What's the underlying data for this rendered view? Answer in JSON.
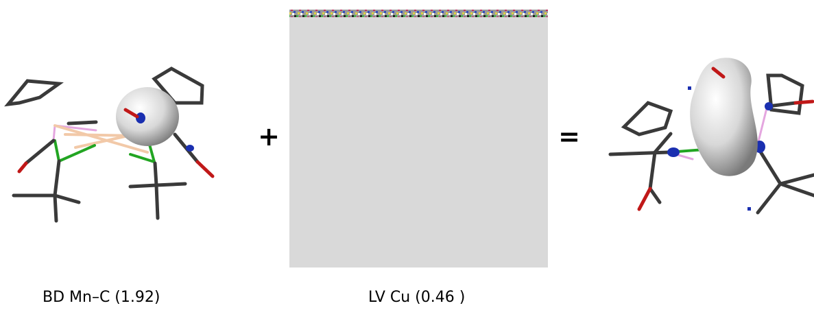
{
  "operators": [
    "+",
    "="
  ],
  "labels": [
    "BD Mn–C (1.92)",
    "LV Cu (0.46 )"
  ]
}
